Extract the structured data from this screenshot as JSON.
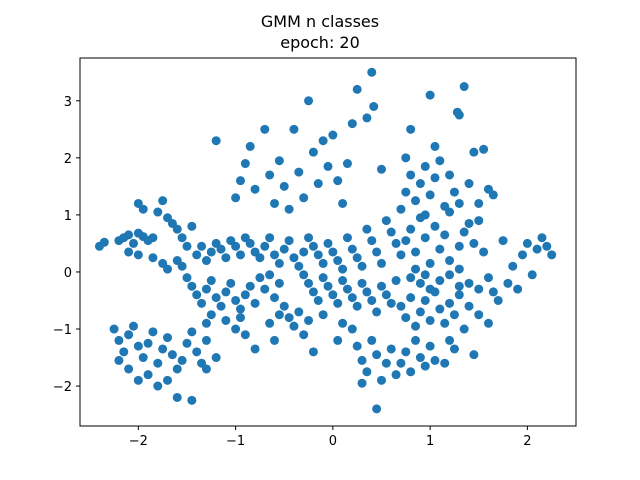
{
  "chart_data": {
    "type": "scatter",
    "title": "GMM n classes",
    "subtitle": "epoch: 20",
    "xlabel": "",
    "ylabel": "",
    "xlim": [
      -2.6,
      2.5
    ],
    "ylim": [
      -2.7,
      3.75
    ],
    "xticks": [
      -2,
      -1,
      0,
      1,
      2
    ],
    "yticks": [
      -2,
      -1,
      0,
      1,
      2,
      3
    ],
    "xtick_labels": [
      "−2",
      "−1",
      "0",
      "1",
      "2"
    ],
    "ytick_labels": [
      "−2",
      "−1",
      "0",
      "1",
      "2",
      "3"
    ],
    "grid": false,
    "legend": "none",
    "color": "#1f77b4",
    "series": [
      {
        "values_note_free": true,
        "points": [
          [
            -2.4,
            0.45
          ],
          [
            -2.35,
            0.52
          ],
          [
            -2.2,
            0.55
          ],
          [
            -2.15,
            0.6
          ],
          [
            -2.1,
            0.65
          ],
          [
            -2.05,
            0.5
          ],
          [
            -2.0,
            0.68
          ],
          [
            -1.95,
            0.62
          ],
          [
            -1.9,
            0.55
          ],
          [
            -1.85,
            0.6
          ],
          [
            -2.0,
            1.2
          ],
          [
            -1.95,
            1.1
          ],
          [
            -1.8,
            1.05
          ],
          [
            -1.75,
            1.25
          ],
          [
            -1.7,
            0.95
          ],
          [
            -1.65,
            0.85
          ],
          [
            -1.6,
            0.75
          ],
          [
            -1.55,
            0.6
          ],
          [
            -1.5,
            0.45
          ],
          [
            -1.45,
            0.8
          ],
          [
            -2.1,
            0.35
          ],
          [
            -2.0,
            0.3
          ],
          [
            -1.85,
            0.25
          ],
          [
            -1.75,
            0.15
          ],
          [
            -1.7,
            0.05
          ],
          [
            -1.6,
            0.2
          ],
          [
            -1.55,
            0.1
          ],
          [
            -1.4,
            0.3
          ],
          [
            -1.35,
            0.45
          ],
          [
            -1.3,
            0.2
          ],
          [
            -1.25,
            0.35
          ],
          [
            -1.2,
            0.5
          ],
          [
            -1.15,
            0.4
          ],
          [
            -1.1,
            0.25
          ],
          [
            -1.05,
            0.55
          ],
          [
            -1.0,
            0.45
          ],
          [
            -0.95,
            0.3
          ],
          [
            -0.9,
            0.6
          ],
          [
            -0.85,
            0.5
          ],
          [
            -0.8,
            0.35
          ],
          [
            -0.75,
            0.25
          ],
          [
            -0.7,
            0.45
          ],
          [
            -0.65,
            0.6
          ],
          [
            -0.6,
            0.3
          ],
          [
            -0.55,
            0.15
          ],
          [
            -0.5,
            0.4
          ],
          [
            -0.45,
            0.55
          ],
          [
            -0.4,
            0.25
          ],
          [
            -0.35,
            0.1
          ],
          [
            -0.3,
            0.35
          ],
          [
            -1.5,
            -0.1
          ],
          [
            -1.45,
            -0.25
          ],
          [
            -1.4,
            -0.4
          ],
          [
            -1.35,
            -0.55
          ],
          [
            -1.3,
            -0.3
          ],
          [
            -1.25,
            -0.15
          ],
          [
            -1.2,
            -0.45
          ],
          [
            -1.15,
            -0.6
          ],
          [
            -1.1,
            -0.35
          ],
          [
            -1.05,
            -0.2
          ],
          [
            -1.0,
            -0.5
          ],
          [
            -0.95,
            -0.65
          ],
          [
            -0.9,
            -0.4
          ],
          [
            -0.85,
            -0.25
          ],
          [
            -0.8,
            -0.55
          ],
          [
            -0.75,
            -0.1
          ],
          [
            -0.7,
            -0.3
          ],
          [
            -0.65,
            -0.05
          ],
          [
            -0.6,
            -0.45
          ],
          [
            -0.55,
            -0.2
          ],
          [
            -2.25,
            -1.0
          ],
          [
            -2.2,
            -1.2
          ],
          [
            -2.15,
            -1.4
          ],
          [
            -2.1,
            -1.1
          ],
          [
            -2.05,
            -0.95
          ],
          [
            -2.0,
            -1.3
          ],
          [
            -1.95,
            -1.5
          ],
          [
            -1.9,
            -1.25
          ],
          [
            -1.85,
            -1.05
          ],
          [
            -1.8,
            -1.6
          ],
          [
            -1.75,
            -1.35
          ],
          [
            -1.7,
            -1.15
          ],
          [
            -1.65,
            -1.45
          ],
          [
            -1.6,
            -1.7
          ],
          [
            -1.55,
            -1.55
          ],
          [
            -1.5,
            -1.25
          ],
          [
            -1.45,
            -1.05
          ],
          [
            -1.4,
            -1.4
          ],
          [
            -1.35,
            -1.6
          ],
          [
            -1.3,
            -1.2
          ],
          [
            -2.2,
            -1.55
          ],
          [
            -2.1,
            -1.7
          ],
          [
            -2.0,
            -1.9
          ],
          [
            -1.9,
            -1.8
          ],
          [
            -1.8,
            -2.0
          ],
          [
            -1.7,
            -1.9
          ],
          [
            -1.6,
            -2.2
          ],
          [
            -1.45,
            -2.25
          ],
          [
            -1.3,
            -1.7
          ],
          [
            -1.2,
            -1.5
          ],
          [
            -1.3,
            -0.9
          ],
          [
            -1.25,
            -0.75
          ],
          [
            -1.1,
            -0.85
          ],
          [
            -1.0,
            -1.0
          ],
          [
            -0.95,
            -0.8
          ],
          [
            -0.9,
            -1.1
          ],
          [
            -0.8,
            -1.35
          ],
          [
            -0.65,
            -0.9
          ],
          [
            -0.6,
            -1.2
          ],
          [
            -0.55,
            -0.75
          ],
          [
            -1.2,
            2.3
          ],
          [
            -1.0,
            1.3
          ],
          [
            -0.95,
            1.6
          ],
          [
            -0.9,
            1.9
          ],
          [
            -0.85,
            2.2
          ],
          [
            -0.8,
            1.45
          ],
          [
            -0.7,
            2.5
          ],
          [
            -0.65,
            1.7
          ],
          [
            -0.6,
            1.2
          ],
          [
            -0.55,
            1.95
          ],
          [
            -0.5,
            1.5
          ],
          [
            -0.45,
            1.1
          ],
          [
            -0.4,
            2.5
          ],
          [
            -0.35,
            1.75
          ],
          [
            -0.3,
            1.3
          ],
          [
            -0.25,
            3.0
          ],
          [
            -0.2,
            2.1
          ],
          [
            -0.15,
            1.55
          ],
          [
            -0.1,
            2.3
          ],
          [
            -0.05,
            1.85
          ],
          [
            0.0,
            2.4
          ],
          [
            0.05,
            1.6
          ],
          [
            0.1,
            1.2
          ],
          [
            0.15,
            1.9
          ],
          [
            0.2,
            2.6
          ],
          [
            0.25,
            3.2
          ],
          [
            0.35,
            2.7
          ],
          [
            0.4,
            3.5
          ],
          [
            0.42,
            2.9
          ],
          [
            0.5,
            1.8
          ],
          [
            -0.25,
            0.6
          ],
          [
            -0.2,
            0.45
          ],
          [
            -0.15,
            0.3
          ],
          [
            -0.1,
            0.15
          ],
          [
            -0.05,
            0.5
          ],
          [
            0.0,
            0.35
          ],
          [
            0.05,
            0.2
          ],
          [
            0.1,
            0.05
          ],
          [
            0.15,
            0.6
          ],
          [
            0.2,
            0.4
          ],
          [
            0.25,
            0.25
          ],
          [
            0.3,
            0.1
          ],
          [
            0.35,
            0.75
          ],
          [
            0.4,
            0.55
          ],
          [
            0.45,
            0.35
          ],
          [
            0.5,
            0.15
          ],
          [
            0.55,
            0.9
          ],
          [
            0.6,
            0.7
          ],
          [
            0.65,
            0.5
          ],
          [
            0.7,
            0.3
          ],
          [
            -0.3,
            -0.05
          ],
          [
            -0.25,
            -0.2
          ],
          [
            -0.2,
            -0.35
          ],
          [
            -0.15,
            -0.5
          ],
          [
            -0.1,
            -0.1
          ],
          [
            -0.05,
            -0.25
          ],
          [
            0.0,
            -0.4
          ],
          [
            0.05,
            -0.55
          ],
          [
            0.1,
            -0.15
          ],
          [
            0.15,
            -0.3
          ],
          [
            0.2,
            -0.45
          ],
          [
            0.25,
            -0.6
          ],
          [
            0.3,
            -0.2
          ],
          [
            0.35,
            -0.35
          ],
          [
            0.4,
            -0.5
          ],
          [
            0.45,
            -0.7
          ],
          [
            0.5,
            -0.25
          ],
          [
            0.55,
            -0.4
          ],
          [
            0.6,
            -0.55
          ],
          [
            0.65,
            -0.15
          ],
          [
            -0.5,
            -0.6
          ],
          [
            -0.45,
            -0.8
          ],
          [
            -0.4,
            -0.95
          ],
          [
            -0.35,
            -0.7
          ],
          [
            -0.3,
            -1.1
          ],
          [
            -0.25,
            -0.85
          ],
          [
            -0.2,
            -1.4
          ],
          [
            -0.1,
            -0.75
          ],
          [
            0.05,
            -1.2
          ],
          [
            0.1,
            -0.9
          ],
          [
            0.2,
            -1.0
          ],
          [
            0.25,
            -1.3
          ],
          [
            0.3,
            -1.55
          ],
          [
            0.35,
            -1.75
          ],
          [
            0.4,
            -1.2
          ],
          [
            0.45,
            -1.45
          ],
          [
            0.5,
            -1.9
          ],
          [
            0.55,
            -1.6
          ],
          [
            0.6,
            -1.35
          ],
          [
            0.65,
            -1.8
          ],
          [
            0.3,
            -1.95
          ],
          [
            0.45,
            -2.4
          ],
          [
            0.7,
            -1.6
          ],
          [
            0.75,
            -1.4
          ],
          [
            0.8,
            -1.75
          ],
          [
            0.85,
            -1.2
          ],
          [
            0.9,
            -1.5
          ],
          [
            0.95,
            -1.65
          ],
          [
            1.0,
            -1.3
          ],
          [
            1.05,
            -1.55
          ],
          [
            0.7,
            -0.6
          ],
          [
            0.75,
            -0.8
          ],
          [
            0.8,
            -0.45
          ],
          [
            0.85,
            -0.95
          ],
          [
            0.9,
            -0.7
          ],
          [
            0.95,
            -0.5
          ],
          [
            1.0,
            -0.85
          ],
          [
            1.05,
            -0.35
          ],
          [
            1.1,
            -0.65
          ],
          [
            1.15,
            -0.9
          ],
          [
            1.2,
            -0.55
          ],
          [
            1.25,
            -0.75
          ],
          [
            1.3,
            -0.4
          ],
          [
            1.35,
            -1.0
          ],
          [
            1.4,
            -0.6
          ],
          [
            1.2,
            -1.2
          ],
          [
            1.15,
            -1.6
          ],
          [
            1.25,
            -1.35
          ],
          [
            1.45,
            -1.45
          ],
          [
            1.3,
            -0.25
          ],
          [
            0.7,
            1.1
          ],
          [
            0.75,
            1.4
          ],
          [
            0.8,
            1.7
          ],
          [
            0.85,
            1.25
          ],
          [
            0.9,
            1.55
          ],
          [
            0.95,
            1.85
          ],
          [
            1.0,
            1.35
          ],
          [
            1.05,
            1.65
          ],
          [
            1.1,
            1.95
          ],
          [
            1.15,
            1.15
          ],
          [
            0.75,
            2.0
          ],
          [
            0.8,
            2.5
          ],
          [
            0.95,
            1.0
          ],
          [
            1.0,
            3.1
          ],
          [
            1.05,
            2.2
          ],
          [
            1.2,
            1.7
          ],
          [
            1.25,
            1.4
          ],
          [
            1.28,
            2.8
          ],
          [
            1.3,
            2.75
          ],
          [
            1.35,
            3.25
          ],
          [
            1.4,
            1.55
          ],
          [
            1.45,
            2.1
          ],
          [
            1.5,
            1.2
          ],
          [
            1.55,
            2.15
          ],
          [
            1.6,
            1.45
          ],
          [
            1.65,
            1.35
          ],
          [
            1.2,
            1.05
          ],
          [
            1.3,
            1.2
          ],
          [
            1.4,
            0.85
          ],
          [
            1.5,
            0.9
          ],
          [
            0.75,
            0.55
          ],
          [
            0.8,
            0.75
          ],
          [
            0.85,
            0.35
          ],
          [
            0.9,
            0.95
          ],
          [
            0.95,
            0.6
          ],
          [
            1.0,
            0.15
          ],
          [
            1.05,
            0.8
          ],
          [
            1.1,
            0.4
          ],
          [
            1.15,
            0.65
          ],
          [
            1.2,
            0.2
          ],
          [
            0.8,
            -0.1
          ],
          [
            0.85,
            0.05
          ],
          [
            0.9,
            -0.2
          ],
          [
            0.95,
            -0.05
          ],
          [
            1.0,
            -0.3
          ],
          [
            1.1,
            -0.15
          ],
          [
            1.2,
            -0.05
          ],
          [
            1.3,
            0.05
          ],
          [
            1.4,
            -0.2
          ],
          [
            1.5,
            -0.3
          ],
          [
            1.3,
            0.45
          ],
          [
            1.35,
            0.7
          ],
          [
            1.45,
            0.5
          ],
          [
            1.55,
            0.35
          ],
          [
            1.6,
            -0.1
          ],
          [
            1.65,
            -0.35
          ],
          [
            1.7,
            -0.5
          ],
          [
            1.75,
            0.55
          ],
          [
            1.6,
            -0.9
          ],
          [
            1.5,
            -0.75
          ],
          [
            1.8,
            -0.2
          ],
          [
            1.85,
            0.1
          ],
          [
            1.9,
            -0.3
          ],
          [
            1.95,
            0.3
          ],
          [
            2.0,
            0.5
          ],
          [
            2.05,
            -0.05
          ],
          [
            2.1,
            0.4
          ],
          [
            2.15,
            0.6
          ],
          [
            2.2,
            0.45
          ],
          [
            2.25,
            0.3
          ]
        ]
      }
    ]
  }
}
